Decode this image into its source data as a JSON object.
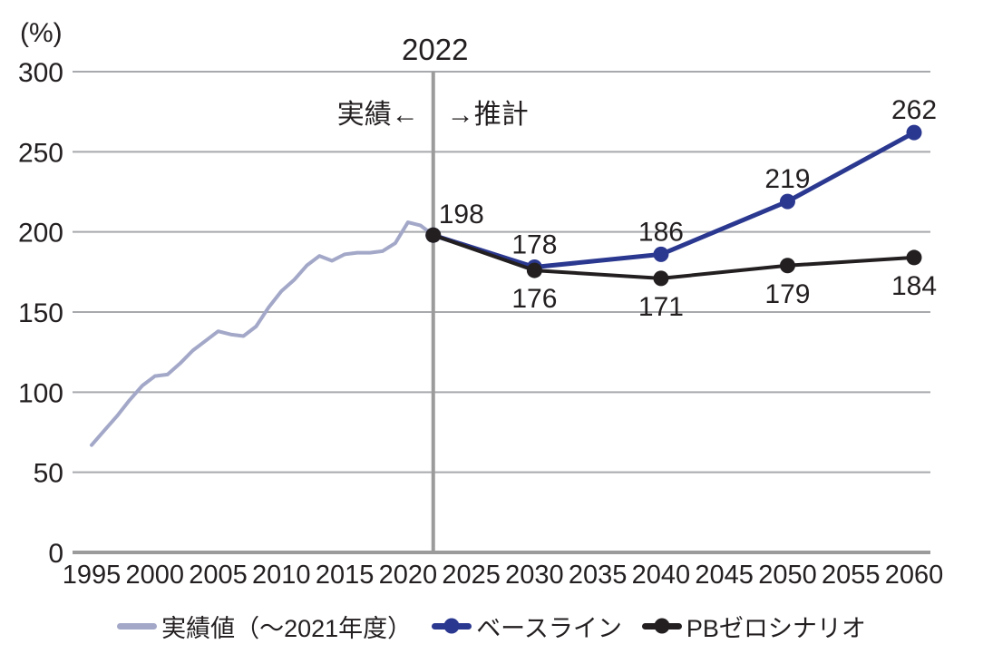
{
  "unit_label": "(%)",
  "divider": {
    "year": 2022,
    "label": "2022",
    "left_text": "実績←",
    "right_text": "→推計"
  },
  "colors": {
    "actual_line": "#a3a8c8",
    "baseline_line": "#2b3890",
    "pbzero_line": "#231f20",
    "gridline": "#a7a9ac",
    "axis": "#9b9b9b",
    "text": "#231f20"
  },
  "chart_data": {
    "type": "line",
    "title": "",
    "xlabel": "",
    "ylabel": "(%)",
    "xlim": [
      1995,
      2060
    ],
    "ylim": [
      0,
      300
    ],
    "yticks": [
      0,
      50,
      100,
      150,
      200,
      250,
      300
    ],
    "xticks": [
      1995,
      2000,
      2005,
      2010,
      2015,
      2020,
      2025,
      2030,
      2035,
      2040,
      2045,
      2050,
      2055,
      2060
    ],
    "grid": true,
    "legend_position": "bottom",
    "divider": {
      "x": 2022,
      "label": "2022",
      "left_text": "実績←",
      "right_text": "→推計"
    },
    "series": [
      {
        "name": "実績値（～2021年度）",
        "color": "#a3a8c8",
        "stroke_width": 4,
        "marker": false,
        "data": [
          [
            1995,
            67
          ],
          [
            1996,
            76
          ],
          [
            1997,
            85
          ],
          [
            1998,
            95
          ],
          [
            1999,
            104
          ],
          [
            2000,
            110
          ],
          [
            2001,
            111
          ],
          [
            2002,
            118
          ],
          [
            2003,
            126
          ],
          [
            2004,
            132
          ],
          [
            2005,
            138
          ],
          [
            2006,
            136
          ],
          [
            2007,
            135
          ],
          [
            2008,
            141
          ],
          [
            2009,
            153
          ],
          [
            2010,
            163
          ],
          [
            2011,
            170
          ],
          [
            2012,
            179
          ],
          [
            2013,
            185
          ],
          [
            2014,
            182
          ],
          [
            2015,
            186
          ],
          [
            2016,
            187
          ],
          [
            2017,
            187
          ],
          [
            2018,
            188
          ],
          [
            2019,
            193
          ],
          [
            2020,
            206
          ],
          [
            2021,
            204
          ],
          [
            2022,
            198
          ]
        ],
        "labels": []
      },
      {
        "name": "ベースライン",
        "color": "#2b3890",
        "stroke_width": 5,
        "marker": true,
        "data": [
          [
            2022,
            198
          ],
          [
            2030,
            178
          ],
          [
            2040,
            186
          ],
          [
            2050,
            219
          ],
          [
            2060,
            262
          ]
        ],
        "labels": [
          {
            "x": 2022,
            "y": 198,
            "text": "198",
            "pos": "above-right"
          },
          {
            "x": 2030,
            "y": 178,
            "text": "178",
            "pos": "above"
          },
          {
            "x": 2040,
            "y": 186,
            "text": "186",
            "pos": "above"
          },
          {
            "x": 2050,
            "y": 219,
            "text": "219",
            "pos": "above"
          },
          {
            "x": 2060,
            "y": 262,
            "text": "262",
            "pos": "above"
          }
        ]
      },
      {
        "name": "PBゼロシナリオ",
        "color": "#231f20",
        "stroke_width": 4,
        "marker": true,
        "data": [
          [
            2022,
            198
          ],
          [
            2030,
            176
          ],
          [
            2040,
            171
          ],
          [
            2050,
            179
          ],
          [
            2060,
            184
          ]
        ],
        "labels": [
          {
            "x": 2030,
            "y": 176,
            "text": "176",
            "pos": "below"
          },
          {
            "x": 2040,
            "y": 171,
            "text": "171",
            "pos": "below"
          },
          {
            "x": 2050,
            "y": 179,
            "text": "179",
            "pos": "below"
          },
          {
            "x": 2060,
            "y": 184,
            "text": "184",
            "pos": "below"
          }
        ]
      }
    ]
  },
  "legend": {
    "items": [
      {
        "label": "実績値（～2021年度）",
        "color": "#a3a8c8",
        "marker": false
      },
      {
        "label": "ベースライン",
        "color": "#2b3890",
        "marker": true
      },
      {
        "label": "PBゼロシナリオ",
        "color": "#231f20",
        "marker": true
      }
    ]
  }
}
